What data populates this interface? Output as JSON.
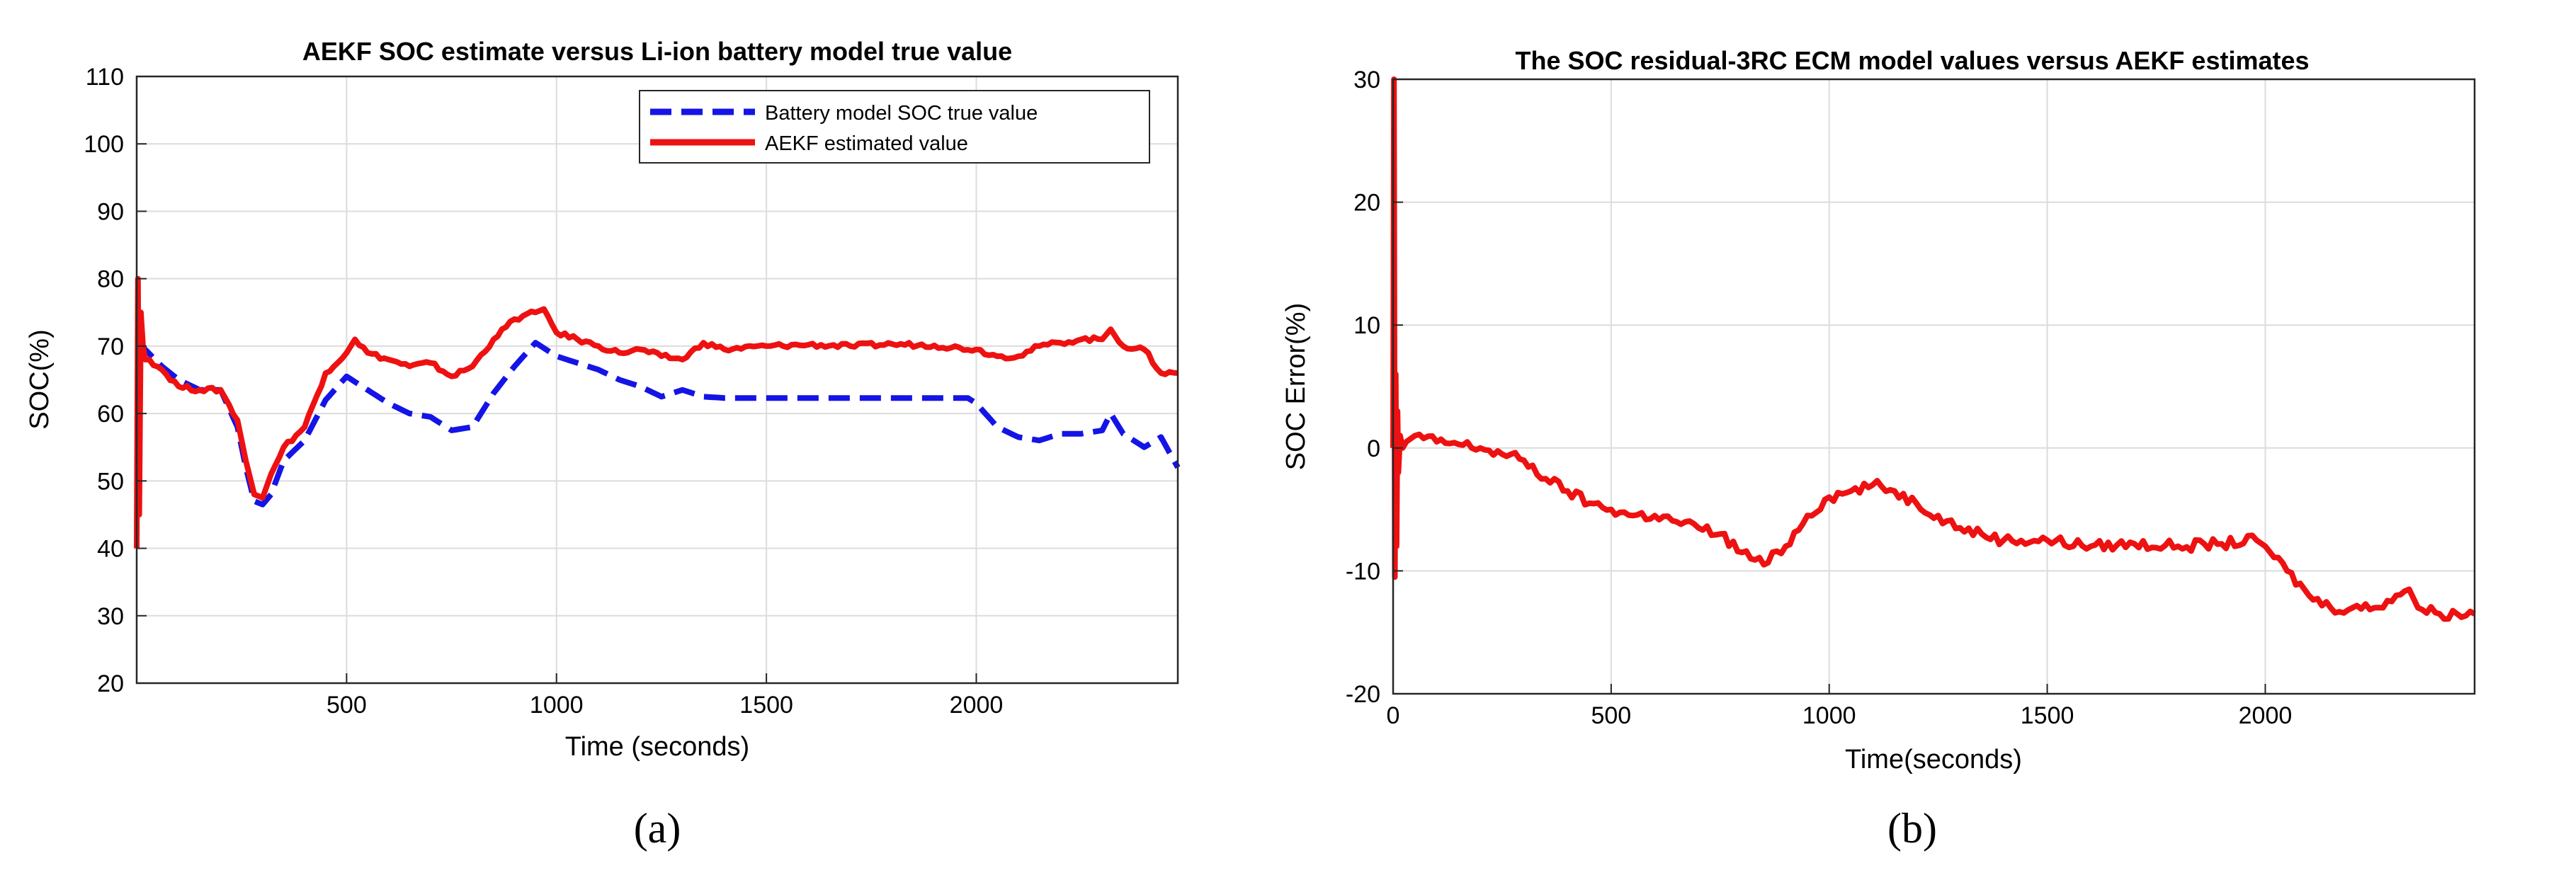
{
  "chart_data": [
    {
      "id": "a",
      "type": "line",
      "title": "AEKF SOC estimate versus Li-ion battery model true value",
      "xlabel": "Time (seconds)",
      "ylabel": "SOC(%)",
      "xlim": [
        0,
        2480
      ],
      "ylim": [
        20,
        110
      ],
      "xticks": [
        500,
        1000,
        1500,
        2000
      ],
      "yticks": [
        20,
        30,
        40,
        50,
        60,
        70,
        80,
        90,
        100,
        110
      ],
      "grid": true,
      "legend_position": "top-right",
      "caption": "(a)",
      "series": [
        {
          "name": "Battery model SOC true value",
          "color": "#1414e6",
          "style": "dashed",
          "x": [
            0,
            20,
            60,
            100,
            150,
            200,
            240,
            260,
            280,
            300,
            320,
            350,
            400,
            450,
            500,
            550,
            600,
            650,
            700,
            750,
            800,
            850,
            900,
            950,
            1000,
            1050,
            1100,
            1150,
            1200,
            1250,
            1300,
            1350,
            1400,
            1500,
            1600,
            1700,
            1800,
            1900,
            1980,
            2000,
            2050,
            2100,
            2150,
            2200,
            2250,
            2300,
            2320,
            2350,
            2400,
            2440,
            2480
          ],
          "values": [
            70.5,
            69.5,
            67,
            65,
            63.5,
            63.5,
            58,
            52,
            47,
            46.5,
            48,
            53,
            56,
            62,
            65.5,
            63.5,
            61.5,
            60,
            59.5,
            57.5,
            58,
            63,
            67,
            70.5,
            68.5,
            67.5,
            66.5,
            65,
            64,
            62.5,
            63.5,
            62.5,
            62.3,
            62.3,
            62.3,
            62.3,
            62.3,
            62.3,
            62.3,
            61.5,
            58,
            56.5,
            56,
            57,
            57,
            57.5,
            60,
            57,
            55,
            56.5,
            52
          ]
        },
        {
          "name": "AEKF estimated value",
          "color": "#ee1111",
          "style": "solid",
          "x": [
            0,
            3,
            6,
            10,
            15,
            20,
            30,
            60,
            100,
            150,
            200,
            240,
            260,
            280,
            300,
            320,
            350,
            400,
            450,
            500,
            520,
            550,
            600,
            650,
            700,
            750,
            800,
            850,
            900,
            950,
            970,
            1000,
            1050,
            1100,
            1150,
            1200,
            1250,
            1300,
            1350,
            1400,
            1500,
            1600,
            1700,
            1800,
            1900,
            2000,
            2050,
            2100,
            2150,
            2200,
            2250,
            2300,
            2320,
            2350,
            2400,
            2440,
            2480
          ],
          "values": [
            40,
            80,
            45,
            75,
            70,
            68,
            68,
            66.5,
            64,
            63.5,
            63.5,
            59,
            53,
            48,
            47.5,
            51,
            55,
            58,
            66,
            69,
            71,
            69,
            68,
            67,
            67.5,
            65.5,
            67,
            71,
            74,
            75,
            75.5,
            72,
            71,
            70,
            69,
            69.5,
            68.5,
            68,
            70.5,
            69.5,
            70,
            70.2,
            70,
            70.3,
            70.1,
            69.5,
            68.5,
            68.5,
            70,
            70.5,
            71,
            71,
            72.5,
            70,
            69.5,
            66,
            66
          ]
        }
      ]
    },
    {
      "id": "b",
      "type": "line",
      "title": "The SOC residual-3RC ECM model values versus AEKF estimates",
      "xlabel": "Time(seconds)",
      "ylabel": "SOC Error(%)",
      "xlim": [
        0,
        2480
      ],
      "ylim": [
        -20,
        30
      ],
      "xticks": [
        0,
        500,
        1000,
        1500,
        2000
      ],
      "yticks": [
        -20,
        -10,
        0,
        10,
        20,
        30
      ],
      "grid": true,
      "caption": "(b)",
      "series": [
        {
          "name": "SOC residual",
          "color": "#ee1111",
          "style": "solid",
          "x": [
            0,
            2,
            4,
            6,
            8,
            10,
            12,
            16,
            22,
            30,
            50,
            100,
            150,
            200,
            250,
            300,
            350,
            400,
            450,
            500,
            550,
            600,
            650,
            700,
            750,
            800,
            850,
            900,
            950,
            1000,
            1050,
            1100,
            1150,
            1200,
            1250,
            1300,
            1350,
            1400,
            1500,
            1600,
            1700,
            1800,
            1900,
            1980,
            2000,
            2050,
            2100,
            2150,
            2200,
            2250,
            2300,
            2330,
            2350,
            2400,
            2440,
            2480
          ],
          "values": [
            0,
            30,
            -10.5,
            6,
            -8,
            3,
            -2,
            1,
            0,
            0.5,
            1,
            0.5,
            0.3,
            0,
            -0.5,
            -1,
            -2.5,
            -3.5,
            -4.5,
            -5,
            -5.5,
            -5.5,
            -6,
            -6.5,
            -7,
            -8.5,
            -9.5,
            -8,
            -5.5,
            -4,
            -3.5,
            -3,
            -3.5,
            -4.5,
            -5.5,
            -6.5,
            -7,
            -7.5,
            -7.5,
            -8,
            -7.8,
            -8,
            -7.8,
            -7.5,
            -8,
            -10,
            -12,
            -13,
            -13,
            -13,
            -12,
            -11.5,
            -13,
            -13.5,
            -13.5,
            -13.5
          ]
        }
      ]
    }
  ]
}
